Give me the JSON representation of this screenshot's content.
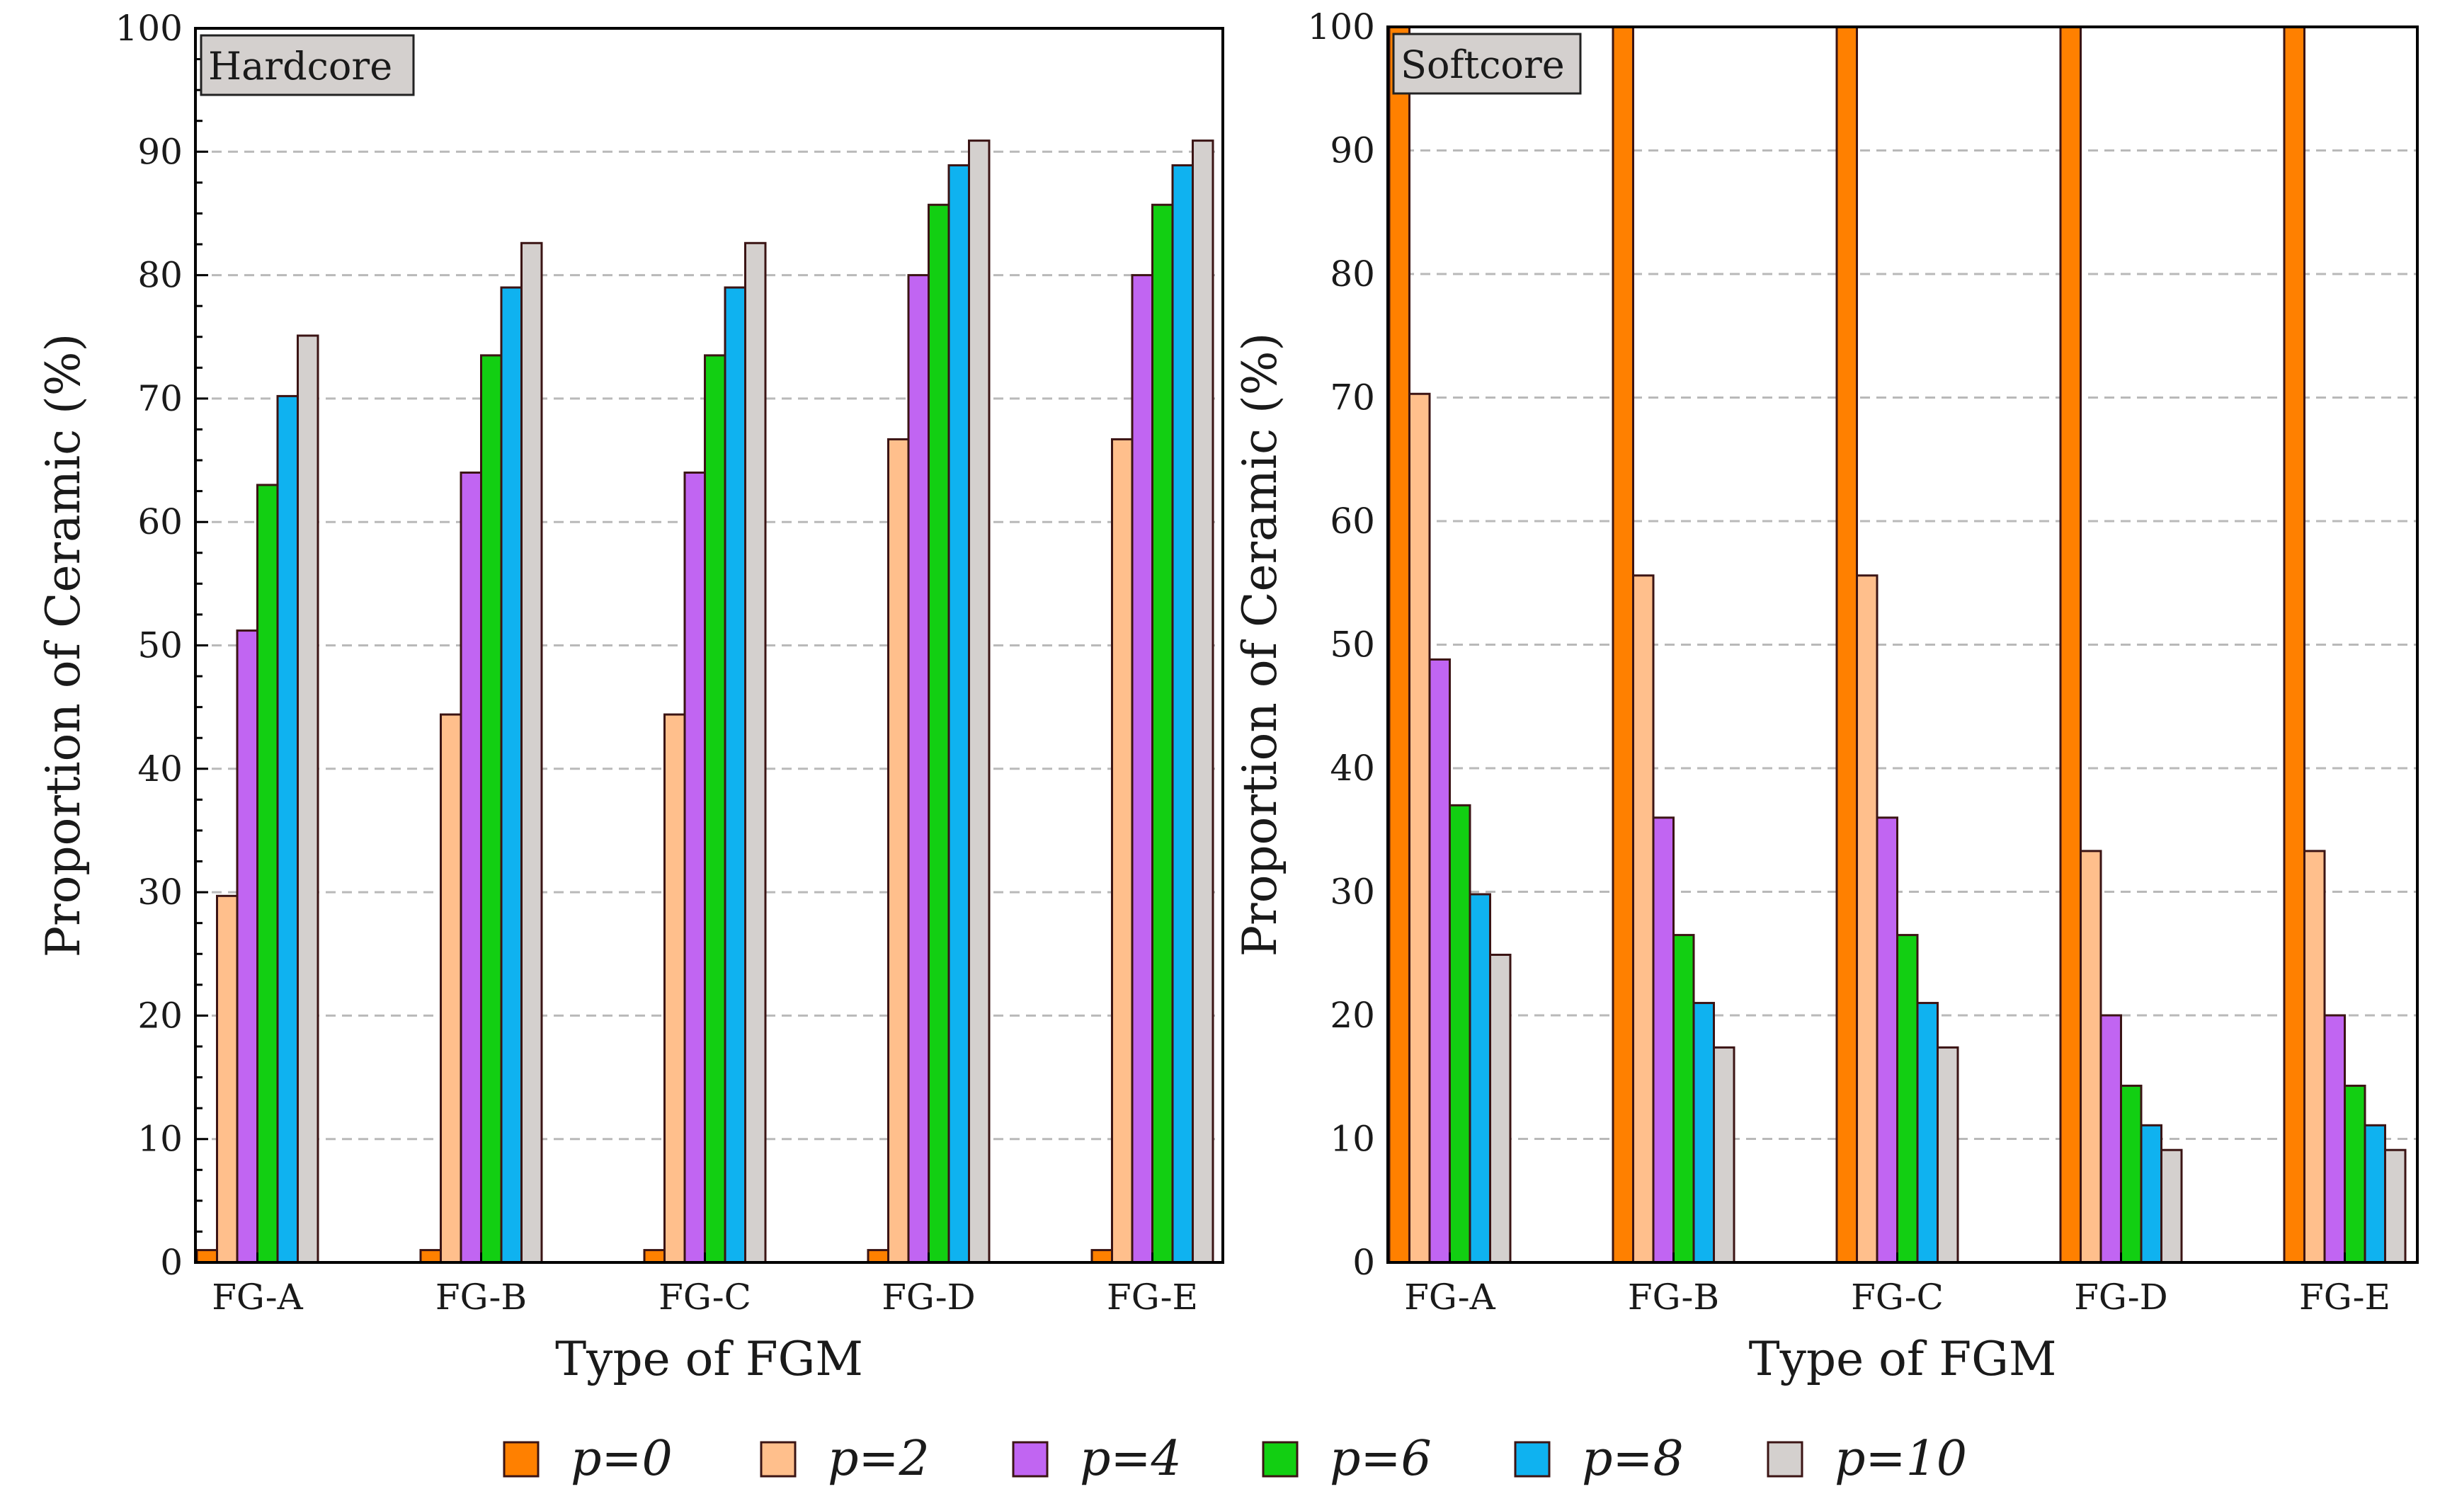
{
  "chart_data": {
    "type": "bar",
    "legend_position": "bottom-center",
    "legend": [
      {
        "label": "p=0",
        "color": "#FF8000"
      },
      {
        "label": "p=2",
        "color": "#FFBF8C"
      },
      {
        "label": "p=4",
        "color": "#C165F2"
      },
      {
        "label": "p=6",
        "color": "#12CF12"
      },
      {
        "label": "p=8",
        "color": "#0FB2F0"
      },
      {
        "label": "p=10",
        "color": "#D4D0CE"
      }
    ],
    "panels": [
      {
        "label": "Hardcore",
        "xlabel": "Type of FGM",
        "ylabel": "Proportion of Ceramic (%)",
        "ylim": [
          0,
          100
        ],
        "yticks": [
          "0",
          "10",
          "20",
          "30",
          "40",
          "50",
          "60",
          "70",
          "80",
          "90",
          "100"
        ],
        "grid": "horizontal dashed",
        "categories": [
          "FG-A",
          "FG-B",
          "FG-C",
          "FG-D",
          "FG-E"
        ],
        "series": [
          {
            "name": "p=0",
            "values": [
              1,
              1,
              1,
              1,
              1
            ]
          },
          {
            "name": "p=2",
            "values": [
              29.7,
              44.4,
              44.4,
              66.7,
              66.7
            ]
          },
          {
            "name": "p=4",
            "values": [
              51.2,
              64.0,
              64.0,
              80.0,
              80.0
            ]
          },
          {
            "name": "p=6",
            "values": [
              63.0,
              73.5,
              73.5,
              85.7,
              85.7
            ]
          },
          {
            "name": "p=8",
            "values": [
              70.2,
              79.0,
              79.0,
              88.9,
              88.9
            ]
          },
          {
            "name": "p=10",
            "values": [
              75.1,
              82.6,
              82.6,
              90.9,
              90.9
            ]
          }
        ]
      },
      {
        "label": "Softcore",
        "xlabel": "Type of FGM",
        "ylabel": "Proportion of Ceramic (%)",
        "ylim": [
          0,
          100
        ],
        "yticks": [
          "0",
          "10",
          "20",
          "30",
          "40",
          "50",
          "60",
          "70",
          "80",
          "90",
          "100"
        ],
        "grid": "horizontal dashed",
        "categories": [
          "FG-A",
          "FG-B",
          "FG-C",
          "FG-D",
          "FG-E"
        ],
        "series": [
          {
            "name": "p=0",
            "values": [
              100,
              100,
              100,
              100,
              100
            ]
          },
          {
            "name": "p=2",
            "values": [
              70.3,
              55.6,
              55.6,
              33.3,
              33.3
            ]
          },
          {
            "name": "p=4",
            "values": [
              48.8,
              36.0,
              36.0,
              20.0,
              20.0
            ]
          },
          {
            "name": "p=6",
            "values": [
              37.0,
              26.5,
              26.5,
              14.3,
              14.3
            ]
          },
          {
            "name": "p=8",
            "values": [
              29.8,
              21.0,
              21.0,
              11.1,
              11.1
            ]
          },
          {
            "name": "p=10",
            "values": [
              24.9,
              17.4,
              17.4,
              9.1,
              9.1
            ]
          }
        ]
      }
    ]
  }
}
